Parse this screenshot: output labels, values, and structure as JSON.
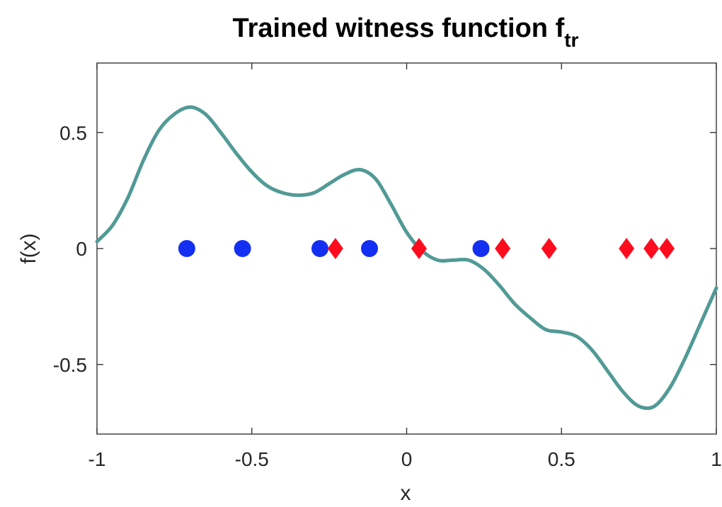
{
  "chart_data": {
    "type": "scatter",
    "title": "Trained witness function f",
    "title_subscript": "tr",
    "xlabel": "x",
    "ylabel": "f(x)",
    "xlim": [
      -1,
      1
    ],
    "ylim": [
      -0.8,
      0.8
    ],
    "x_ticks": [
      -1,
      -0.5,
      0,
      0.5,
      1
    ],
    "x_tick_labels": [
      "-1",
      "-0.5",
      "0",
      "0.5",
      "1"
    ],
    "y_ticks": [
      -0.5,
      0,
      0.5
    ],
    "y_tick_labels": [
      "-0.5",
      "0",
      "0.5"
    ],
    "grid": false,
    "colors": {
      "curve": "#519a95",
      "circles": "#1330f2",
      "diamonds": "#fd0c1e",
      "axes": "#262626"
    },
    "series": [
      {
        "kind": "line",
        "points": [
          [
            -1.0,
            0.03
          ],
          [
            -0.95,
            0.1
          ],
          [
            -0.9,
            0.22
          ],
          [
            -0.85,
            0.38
          ],
          [
            -0.8,
            0.51
          ],
          [
            -0.75,
            0.58
          ],
          [
            -0.7,
            0.61
          ],
          [
            -0.65,
            0.58
          ],
          [
            -0.6,
            0.5
          ],
          [
            -0.55,
            0.41
          ],
          [
            -0.5,
            0.33
          ],
          [
            -0.45,
            0.27
          ],
          [
            -0.4,
            0.24
          ],
          [
            -0.35,
            0.23
          ],
          [
            -0.3,
            0.24
          ],
          [
            -0.25,
            0.28
          ],
          [
            -0.2,
            0.32
          ],
          [
            -0.15,
            0.34
          ],
          [
            -0.1,
            0.3
          ],
          [
            -0.05,
            0.19
          ],
          [
            0.0,
            0.07
          ],
          [
            0.05,
            -0.01
          ],
          [
            0.1,
            -0.05
          ],
          [
            0.15,
            -0.05
          ],
          [
            0.2,
            -0.05
          ],
          [
            0.25,
            -0.09
          ],
          [
            0.3,
            -0.16
          ],
          [
            0.35,
            -0.24
          ],
          [
            0.4,
            -0.3
          ],
          [
            0.45,
            -0.35
          ],
          [
            0.5,
            -0.36
          ],
          [
            0.55,
            -0.38
          ],
          [
            0.6,
            -0.44
          ],
          [
            0.65,
            -0.53
          ],
          [
            0.7,
            -0.62
          ],
          [
            0.75,
            -0.68
          ],
          [
            0.8,
            -0.68
          ],
          [
            0.85,
            -0.6
          ],
          [
            0.9,
            -0.47
          ],
          [
            0.95,
            -0.32
          ],
          [
            1.0,
            -0.17
          ]
        ]
      },
      {
        "kind": "circle",
        "points": [
          [
            -0.71,
            0
          ],
          [
            -0.53,
            0
          ],
          [
            -0.28,
            0
          ],
          [
            -0.12,
            0
          ],
          [
            0.24,
            0
          ]
        ]
      },
      {
        "kind": "diamond",
        "points": [
          [
            -0.23,
            0
          ],
          [
            0.04,
            0
          ],
          [
            0.31,
            0
          ],
          [
            0.46,
            0
          ],
          [
            0.71,
            0
          ],
          [
            0.79,
            0
          ],
          [
            0.84,
            0
          ]
        ]
      }
    ]
  }
}
